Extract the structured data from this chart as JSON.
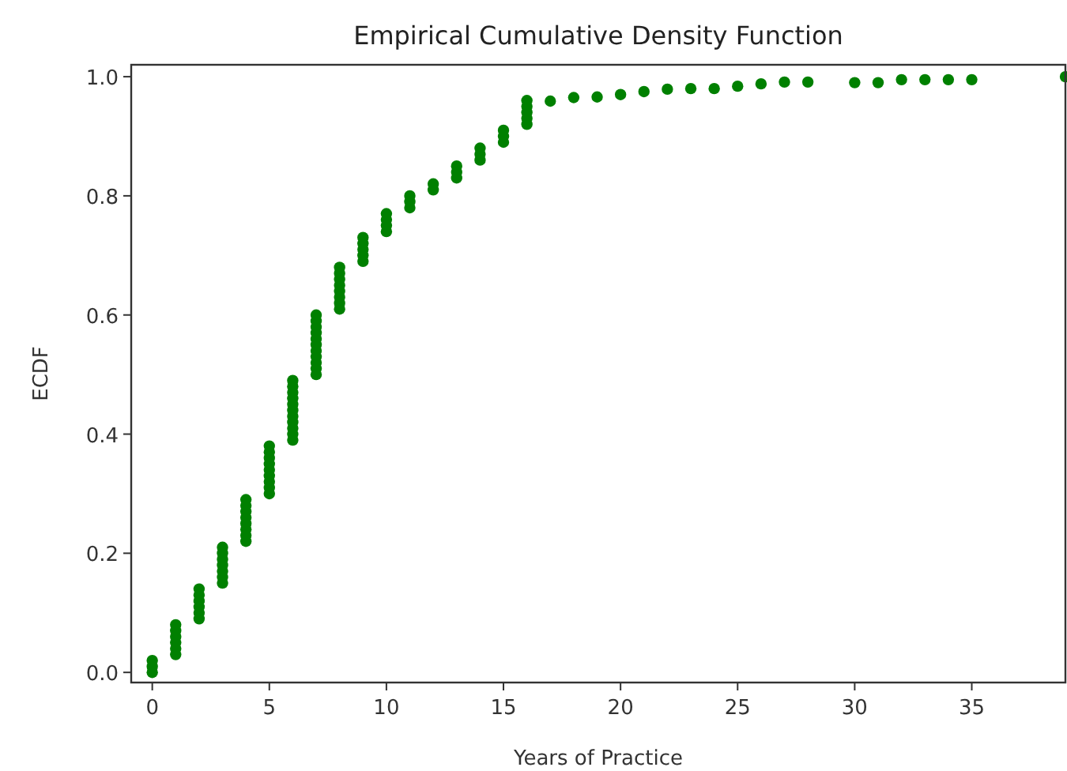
{
  "chart_data": {
    "type": "scatter",
    "title": "Empirical Cumulative Density Function",
    "xlabel": "Years of Practice",
    "ylabel": "ECDF",
    "xlim": [
      -0.9,
      39
    ],
    "ylim": [
      -0.017,
      1.02
    ],
    "xticks": [
      0,
      5,
      10,
      15,
      20,
      25,
      30,
      35
    ],
    "yticks": [
      {
        "value": 0,
        "label": "0.0"
      },
      {
        "value": 0.2,
        "label": "0.2"
      },
      {
        "value": 0.4,
        "label": "0.4"
      },
      {
        "value": 0.6,
        "label": "0.6"
      },
      {
        "value": 0.8,
        "label": "0.8"
      },
      {
        "value": 1,
        "label": "1.0"
      }
    ],
    "marker": "circle",
    "grid": false,
    "series": [
      {
        "color": "#008000",
        "x": [
          0,
          0,
          0,
          1,
          1,
          1,
          1,
          1,
          1,
          2,
          2,
          2,
          2,
          2,
          2,
          3,
          3,
          3,
          3,
          3,
          3,
          3,
          4,
          4,
          4,
          4,
          4,
          4,
          4,
          4,
          5,
          5,
          5,
          5,
          5,
          5,
          5,
          5,
          5,
          6,
          6,
          6,
          6,
          6,
          6,
          6,
          6,
          6,
          6,
          6,
          7,
          7,
          7,
          7,
          7,
          7,
          7,
          7,
          7,
          7,
          7,
          8,
          8,
          8,
          8,
          8,
          8,
          8,
          8,
          9,
          9,
          9,
          9,
          9,
          10,
          10,
          10,
          10,
          11,
          11,
          11,
          12,
          12,
          13,
          13,
          13,
          14,
          14,
          14,
          15,
          15,
          15,
          16,
          16,
          16,
          16,
          16,
          17,
          18,
          19,
          20,
          21,
          22,
          23,
          24,
          25,
          26,
          27,
          28,
          30,
          31,
          32,
          33,
          34,
          35,
          39
        ],
        "values": [
          0,
          0.01,
          0.02,
          0.03,
          0.04,
          0.05,
          0.06,
          0.07,
          0.08,
          0.09,
          0.1,
          0.11,
          0.12,
          0.13,
          0.14,
          0.15,
          0.16,
          0.17,
          0.18,
          0.19,
          0.2,
          0.21,
          0.22,
          0.23,
          0.24,
          0.25,
          0.26,
          0.27,
          0.28,
          0.29,
          0.3,
          0.31,
          0.32,
          0.33,
          0.34,
          0.35,
          0.36,
          0.37,
          0.38,
          0.39,
          0.4,
          0.41,
          0.42,
          0.43,
          0.44,
          0.45,
          0.46,
          0.47,
          0.48,
          0.49,
          0.5,
          0.51,
          0.52,
          0.53,
          0.54,
          0.55,
          0.56,
          0.57,
          0.58,
          0.59,
          0.6,
          0.61,
          0.62,
          0.63,
          0.64,
          0.65,
          0.66,
          0.67,
          0.68,
          0.69,
          0.7,
          0.71,
          0.72,
          0.73,
          0.74,
          0.75,
          0.76,
          0.77,
          0.78,
          0.79,
          0.8,
          0.81,
          0.82,
          0.83,
          0.84,
          0.85,
          0.86,
          0.87,
          0.88,
          0.89,
          0.9,
          0.91,
          0.92,
          0.93,
          0.94,
          0.95,
          0.96,
          0.959,
          0.965,
          0.966,
          0.97,
          0.975,
          0.979,
          0.98,
          0.98,
          0.984,
          0.988,
          0.991,
          0.991,
          0.99,
          0.99,
          0.995,
          0.995,
          0.995,
          0.995,
          1
        ]
      }
    ]
  }
}
